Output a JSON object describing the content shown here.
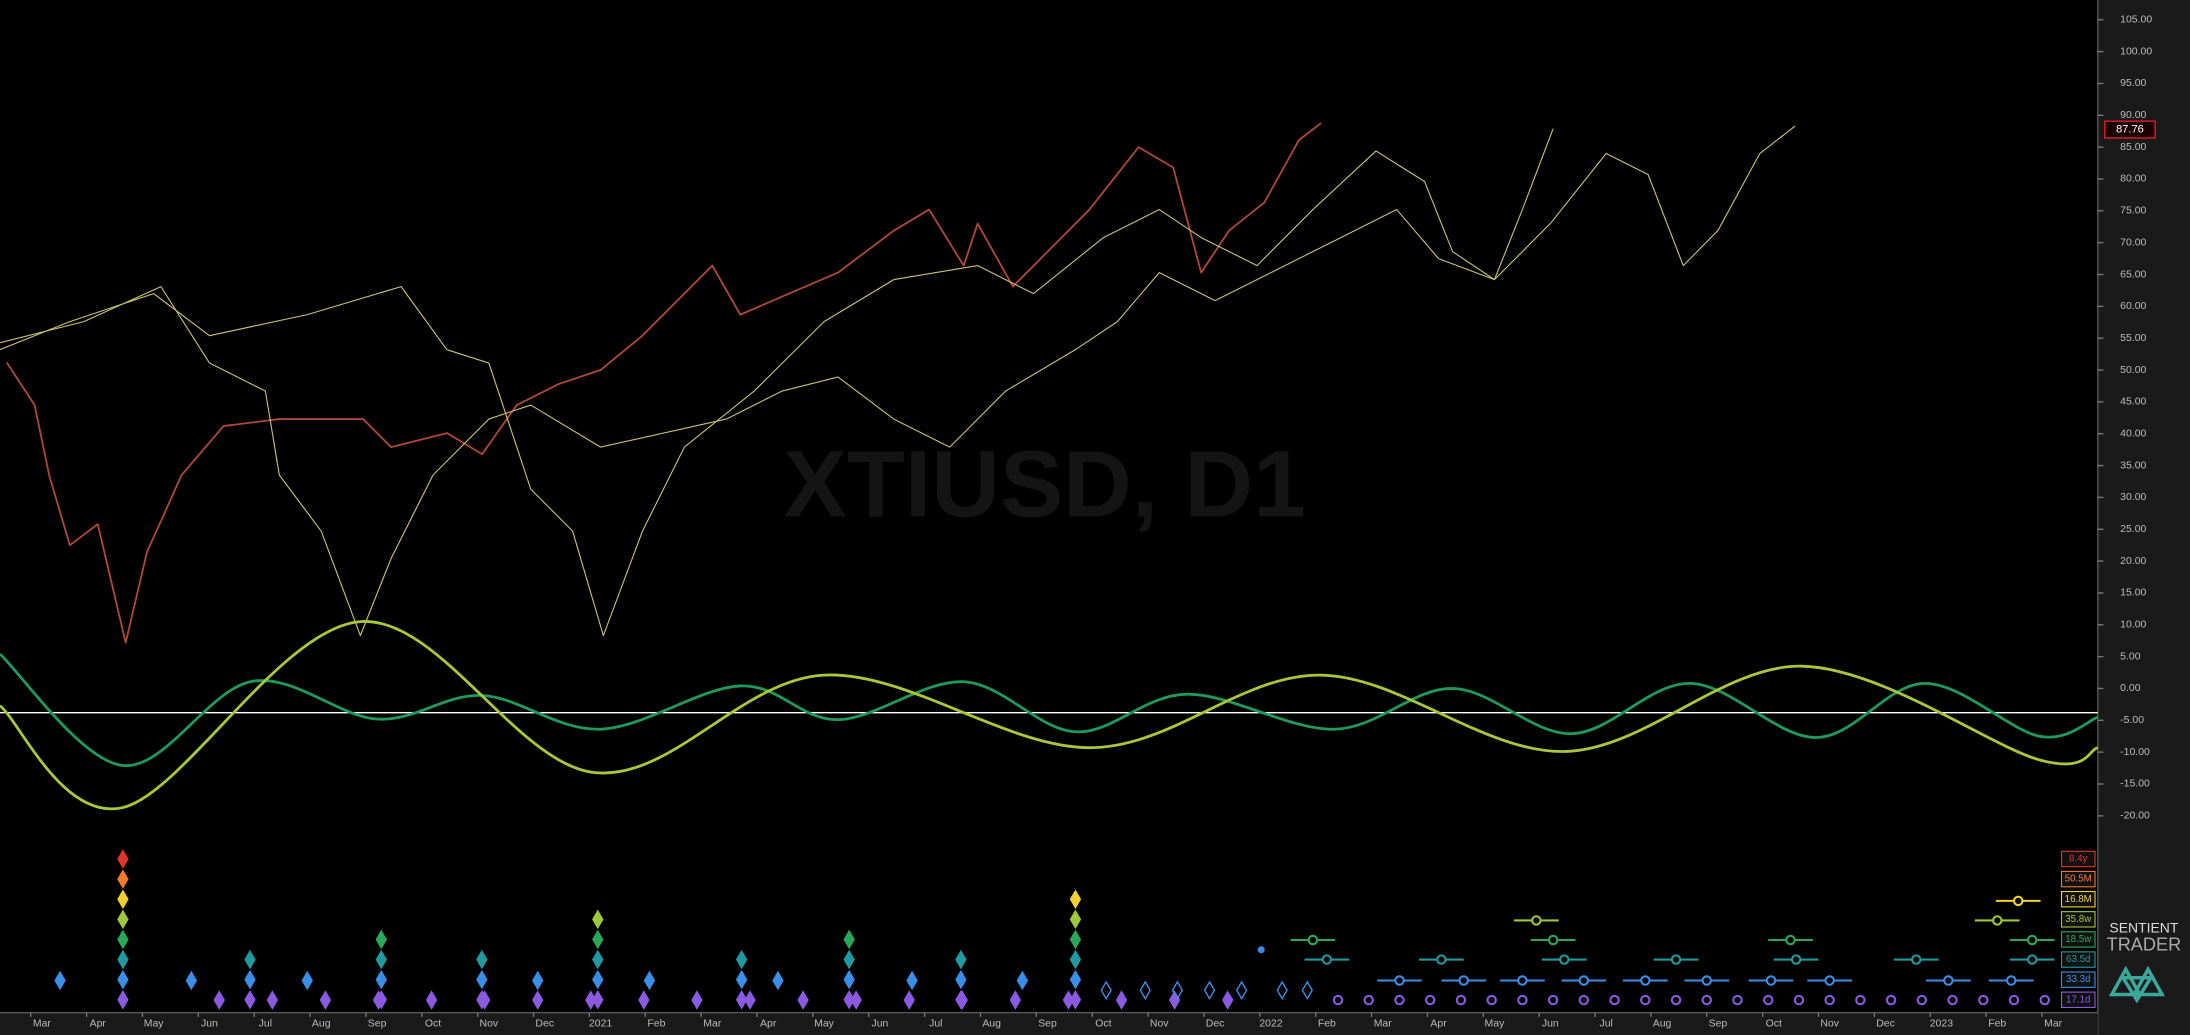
{
  "chart_data": {
    "type": "line",
    "title": "XTIUSD, D1",
    "xlim": [
      -0.75,
      36.8
    ],
    "ylim": [
      -50.9,
      108.1
    ],
    "xticks": [
      {
        "value": 0,
        "label": "Mar"
      },
      {
        "value": 1,
        "label": "Apr"
      },
      {
        "value": 2,
        "label": "May"
      },
      {
        "value": 3,
        "label": "Jun"
      },
      {
        "value": 4,
        "label": "Jul"
      },
      {
        "value": 5,
        "label": "Aug"
      },
      {
        "value": 6,
        "label": "Sep"
      },
      {
        "value": 7,
        "label": "Oct"
      },
      {
        "value": 8,
        "label": "Nov"
      },
      {
        "value": 9,
        "label": "Dec"
      },
      {
        "value": 10,
        "label": "2021"
      },
      {
        "value": 11,
        "label": "Feb"
      },
      {
        "value": 12,
        "label": "Mar"
      },
      {
        "value": 13,
        "label": "Apr"
      },
      {
        "value": 14,
        "label": "May"
      },
      {
        "value": 15,
        "label": "Jun"
      },
      {
        "value": 16,
        "label": "Jul"
      },
      {
        "value": 17,
        "label": "Aug"
      },
      {
        "value": 18,
        "label": "Sep"
      },
      {
        "value": 19,
        "label": "Oct"
      },
      {
        "value": 20,
        "label": "Nov"
      },
      {
        "value": 21,
        "label": "Dec"
      },
      {
        "value": 22,
        "label": "2022"
      },
      {
        "value": 23,
        "label": "Feb"
      },
      {
        "value": 24,
        "label": "Mar"
      },
      {
        "value": 25,
        "label": "Apr"
      },
      {
        "value": 26,
        "label": "May"
      },
      {
        "value": 27,
        "label": "Jun"
      },
      {
        "value": 28,
        "label": "Jul"
      },
      {
        "value": 29,
        "label": "Aug"
      },
      {
        "value": 30,
        "label": "Sep"
      },
      {
        "value": 31,
        "label": "Oct"
      },
      {
        "value": 32,
        "label": "Nov"
      },
      {
        "value": 33,
        "label": "Dec"
      },
      {
        "value": 34,
        "label": "2023"
      },
      {
        "value": 35,
        "label": "Feb"
      },
      {
        "value": 36,
        "label": "Mar"
      }
    ],
    "yticks": [
      {
        "value": 105,
        "label": "105.00"
      },
      {
        "value": 100,
        "label": "100.00"
      },
      {
        "value": 95,
        "label": "95.00"
      },
      {
        "value": 90,
        "label": "90.00"
      },
      {
        "value": 85,
        "label": "85.00"
      },
      {
        "value": 80,
        "label": "80.00"
      },
      {
        "value": 75,
        "label": "75.00"
      },
      {
        "value": 70,
        "label": "70.00"
      },
      {
        "value": 65,
        "label": "65.00"
      },
      {
        "value": 60,
        "label": "60.00"
      },
      {
        "value": 55,
        "label": "55.00"
      },
      {
        "value": 50,
        "label": "50.00"
      },
      {
        "value": 45,
        "label": "45.00"
      },
      {
        "value": 40,
        "label": "40.00"
      },
      {
        "value": 35,
        "label": "35.00"
      },
      {
        "value": 30,
        "label": "30.00"
      },
      {
        "value": 25,
        "label": "25.00"
      },
      {
        "value": 20,
        "label": "20.00"
      },
      {
        "value": 15,
        "label": "15.00"
      },
      {
        "value": 10,
        "label": "10.00"
      },
      {
        "value": 5,
        "label": "5.00"
      },
      {
        "value": 0,
        "label": "0.00"
      },
      {
        "value": -5,
        "label": "-5.00"
      },
      {
        "value": -10,
        "label": "-10.00"
      },
      {
        "value": -15,
        "label": "-15.00"
      },
      {
        "value": -20,
        "label": "-20.00"
      }
    ],
    "last_price": 87.76,
    "hline": -3.8,
    "series": [
      {
        "color": "#b04836",
        "width": 1.3,
        "x": [
          -0.63,
          -0.13,
          0.13,
          0.5,
          1.0,
          1.5,
          1.88,
          2.5,
          3.25,
          4.25,
          5.75,
          6.25,
          7.25,
          7.88,
          8.5,
          9.25,
          10,
          10.75,
          12,
          12.5,
          14.25,
          15.25,
          15.88,
          16.5,
          16.75,
          17.38,
          18.75,
          19.63,
          20.25,
          20.75,
          21.25,
          21.88,
          22.5,
          22.9
        ],
        "values": [
          51.2,
          44.5,
          33.5,
          22.5,
          25.8,
          7.2,
          21.4,
          33.5,
          41.2,
          42.3,
          42.3,
          37.9,
          40.1,
          36.8,
          44.5,
          47.8,
          50.0,
          55.4,
          66.4,
          58.7,
          65.3,
          71.9,
          75.2,
          66.4,
          73.0,
          63.1,
          75.2,
          85.0,
          81.8,
          65.3,
          71.9,
          76.3,
          86.1,
          88.8
        ]
      },
      {
        "color": "#c9c272",
        "width": 0.8,
        "x": [
          -0.75,
          0.75,
          2.13,
          3,
          4,
          4.25,
          5,
          5.7,
          6.25,
          7,
          8,
          8.75,
          10,
          12.25,
          13.25,
          14.25,
          15.25,
          16.25,
          17.25,
          18.5,
          19.25,
          20,
          21,
          22.25,
          23.25,
          24.25,
          25,
          26,
          27,
          28,
          28.75,
          29.38,
          30,
          30.75,
          31.38
        ],
        "values": [
          54.3,
          57.6,
          63.1,
          51.1,
          46.7,
          33.5,
          24.7,
          8.3,
          20.4,
          33.5,
          42.3,
          44.5,
          37.9,
          42.3,
          46.7,
          48.9,
          42.3,
          37.9,
          46.7,
          53.2,
          57.6,
          65.3,
          60.9,
          66.4,
          70.8,
          75.2,
          67.5,
          64.2,
          73.0,
          84.0,
          80.7,
          66.4,
          71.9,
          84.0,
          88.3
        ]
      },
      {
        "color": "#c9c272",
        "width": 0.8,
        "x": [
          -0.75,
          0.5,
          2,
          3,
          4.75,
          6.43,
          7.25,
          8,
          8.75,
          9.5,
          10.05,
          10.75,
          11.5,
          12.75,
          14,
          15.25,
          16.75,
          17.75,
          19,
          20,
          20.75,
          21.75,
          22.75,
          23.88,
          24.75,
          25.25,
          26,
          26.5,
          27.05
        ],
        "values": [
          53.2,
          57.6,
          62.0,
          55.4,
          58.7,
          63.1,
          53.2,
          51.1,
          31.3,
          24.7,
          8.3,
          24.7,
          37.9,
          46.7,
          57.6,
          64.2,
          66.4,
          62.0,
          70.8,
          75.2,
          70.8,
          66.4,
          75.2,
          84.4,
          79.6,
          68.6,
          64.2,
          75.2,
          87.9
        ]
      },
      {
        "color": "#1f9a5a",
        "width": 2,
        "smooth": true,
        "x": [
          -0.75,
          1.45,
          3.75,
          6,
          7.88,
          10,
          12.5,
          14.25,
          16.5,
          18.5,
          20.5,
          23.13,
          25.25,
          27.38,
          29.5,
          31.75,
          33.7,
          35.75,
          36.8
        ],
        "values": [
          5.4,
          -12.1,
          1.1,
          -4.8,
          -1.1,
          -6.4,
          0.4,
          -4.9,
          1.05,
          -6.8,
          -0.9,
          -6.4,
          0,
          -7.1,
          0.8,
          -7.7,
          0.8,
          -7.5,
          -4.5
        ]
      },
      {
        "color": "#a8c83a",
        "width": 2,
        "smooth": true,
        "x": [
          -0.75,
          1.45,
          5.7,
          9.88,
          14,
          18.75,
          22.88,
          27.25,
          31.5,
          35.75,
          36.8
        ],
        "values": [
          -2.7,
          -18.7,
          10.5,
          -13.2,
          2.1,
          -9.3,
          2.1,
          -9.9,
          3.5,
          -11.2,
          -9.3
        ]
      }
    ],
    "cycles": [
      {
        "name": "8.4y",
        "color": "#e0342c"
      },
      {
        "name": "50.5M",
        "color": "#f07a2a"
      },
      {
        "name": "16.8M",
        "color": "#f0d030"
      },
      {
        "name": "35.8w",
        "color": "#9cc83a"
      },
      {
        "name": "18.5w",
        "color": "#2aa85a"
      },
      {
        "name": "63.5d",
        "color": "#1f9aa0"
      },
      {
        "name": "33.3d",
        "color": "#3a8ee8"
      },
      {
        "name": "17.1d",
        "color": "#8a5ae0"
      }
    ]
  },
  "logo": {
    "line1": "SENTIENT",
    "line2": "TRADER"
  }
}
